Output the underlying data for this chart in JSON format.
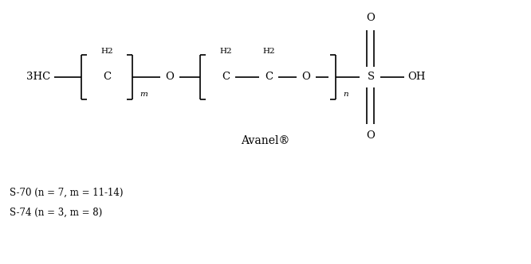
{
  "bg_color": "#ffffff",
  "fig_width": 6.66,
  "fig_height": 3.32,
  "dpi": 100,
  "avanel_label": "Avanel®",
  "label1": "S-70 (n = 7, m = 11-14)",
  "label2": "S-74 (n = 3, m = 8)"
}
